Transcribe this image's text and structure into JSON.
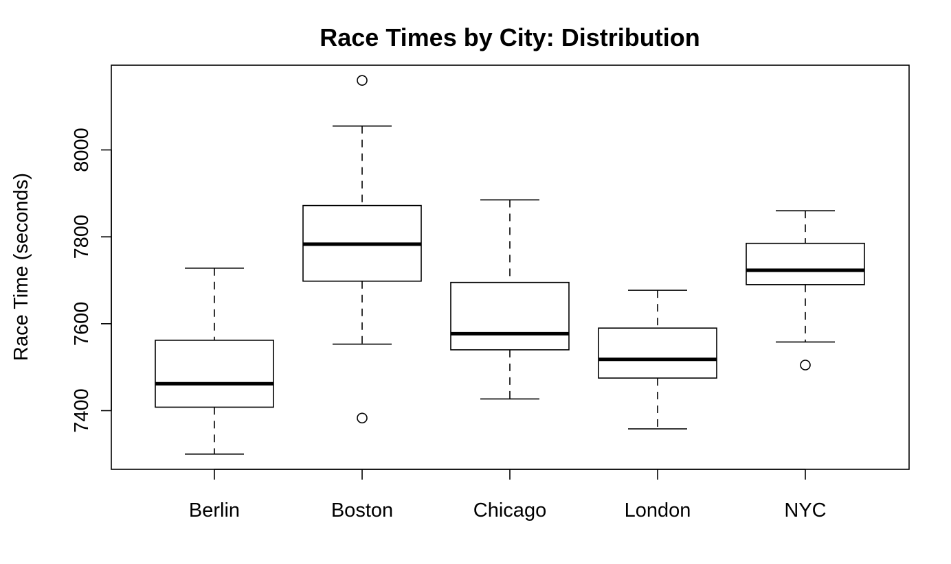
{
  "chart_data": {
    "type": "boxplot",
    "title": "Race Times by City: Distribution",
    "xlabel": "",
    "ylabel": "Race Time (seconds)",
    "ylim": [
      7265,
      8195
    ],
    "yticks": [
      "7400",
      "7600",
      "7800",
      "8000"
    ],
    "categories": [
      "Berlin",
      "Boston",
      "Chicago",
      "London",
      "NYC"
    ],
    "boxes": [
      {
        "category": "Berlin",
        "whisker_low": 7300,
        "q1": 7408,
        "median": 7462,
        "q3": 7562,
        "whisker_high": 7728,
        "outliers": []
      },
      {
        "category": "Boston",
        "whisker_low": 7553,
        "q1": 7698,
        "median": 7783,
        "q3": 7872,
        "whisker_high": 8055,
        "outliers": [
          7383,
          8160
        ]
      },
      {
        "category": "Chicago",
        "whisker_low": 7427,
        "q1": 7540,
        "median": 7577,
        "q3": 7695,
        "whisker_high": 7885,
        "outliers": []
      },
      {
        "category": "London",
        "whisker_low": 7358,
        "q1": 7475,
        "median": 7518,
        "q3": 7590,
        "whisker_high": 7677,
        "outliers": []
      },
      {
        "category": "NYC",
        "whisker_low": 7558,
        "q1": 7690,
        "median": 7723,
        "q3": 7785,
        "whisker_high": 7860,
        "outliers": [
          7505
        ]
      }
    ],
    "grid": false,
    "legend": "none"
  }
}
